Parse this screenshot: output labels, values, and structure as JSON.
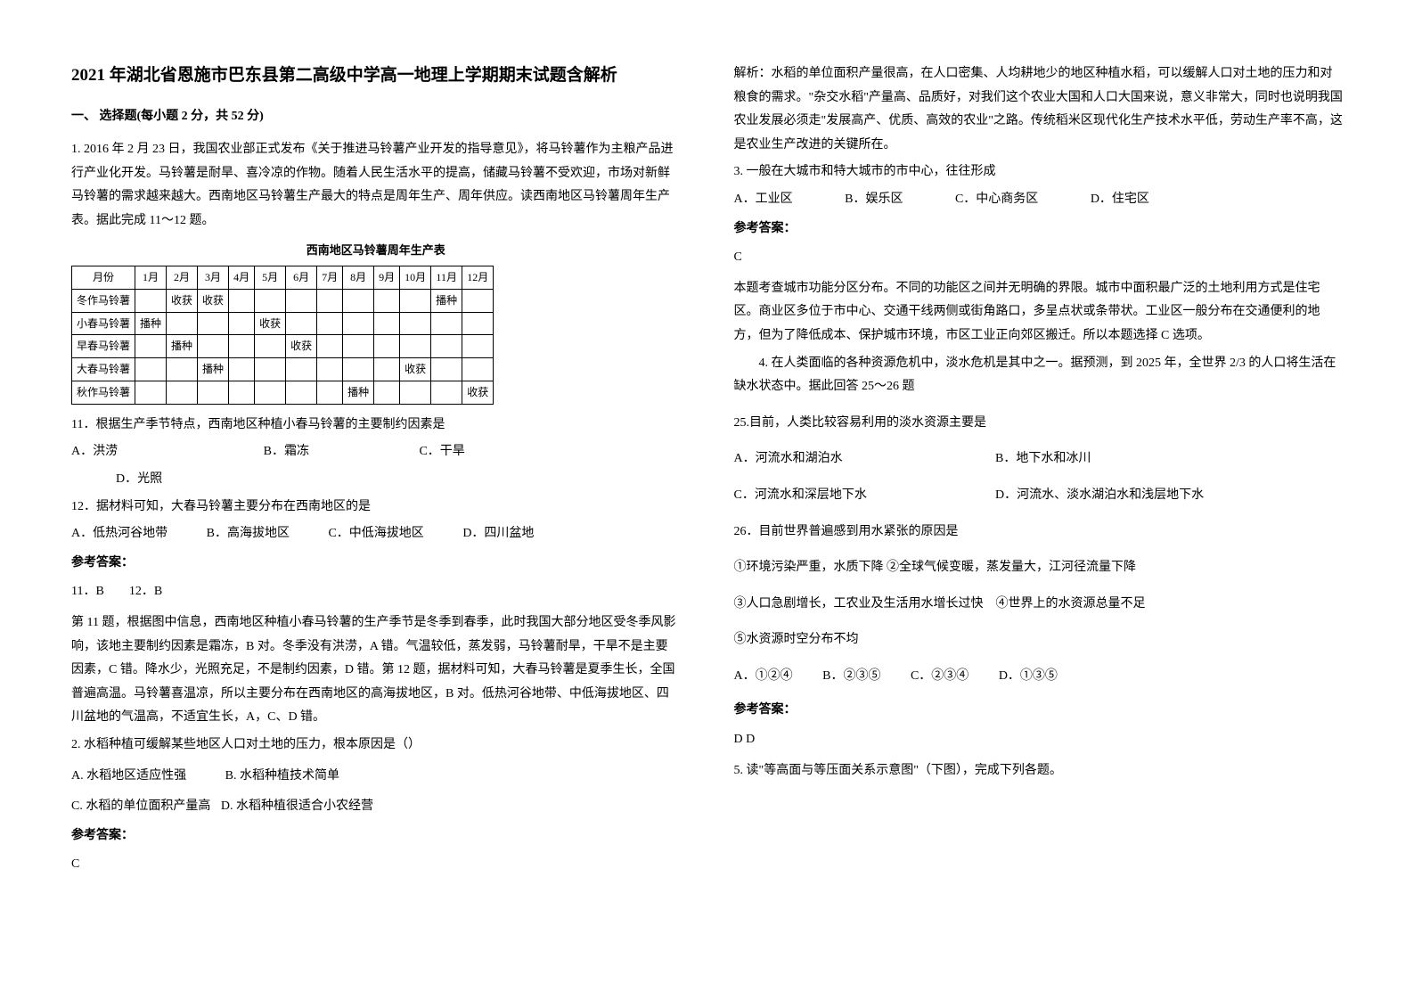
{
  "title": "2021 年湖北省恩施市巴东县第二高级中学高一地理上学期期末试题含解析",
  "section1_heading": "一、 选择题(每小题 2 分，共 52 分)",
  "left": {
    "q1_intro": "1. 2016 年 2 月 23 日，我国农业部正式发布《关于推进马铃薯产业开发的指导意见》，将马铃薯作为主粮产品进行产业化开发。马铃薯是耐旱、喜冷凉的作物。随着人民生活水平的提高，储藏马铃薯不受欢迎，市场对新鲜马铃薯的需求越来越大。西南地区马铃薯生产最大的特点是周年生产、周年供应。读西南地区马铃薯周年生产表。据此完成 11～12 题。",
    "table_caption": "西南地区马铃薯周年生产表",
    "table": {
      "header": [
        "月份",
        "1月",
        "2月",
        "3月",
        "4月",
        "5月",
        "6月",
        "7月",
        "8月",
        "9月",
        "10月",
        "11月",
        "12月"
      ],
      "rows": [
        {
          "name": "冬作马铃薯",
          "cells": [
            "",
            "收获",
            "收获",
            "",
            "",
            "",
            "",
            "",
            "",
            "",
            "播种",
            ""
          ]
        },
        {
          "name": "小春马铃薯",
          "cells": [
            "播种",
            "",
            "",
            "",
            "收获",
            "",
            "",
            "",
            "",
            "",
            "",
            ""
          ]
        },
        {
          "name": "早春马铃薯",
          "cells": [
            "",
            "播种",
            "",
            "",
            "",
            "收获",
            "",
            "",
            "",
            "",
            "",
            ""
          ]
        },
        {
          "name": "大春马铃薯",
          "cells": [
            "",
            "",
            "播种",
            "",
            "",
            "",
            "",
            "",
            "",
            "收获",
            "",
            ""
          ]
        },
        {
          "name": "秋作马铃薯",
          "cells": [
            "",
            "",
            "",
            "",
            "",
            "",
            "",
            "播种",
            "",
            "",
            "",
            "收获"
          ]
        }
      ]
    },
    "q11": "11．根据生产季节特点，西南地区种植小春马铃薯的主要制约因素是",
    "q11_opts": {
      "a": "A．洪涝",
      "b": "B．霜冻",
      "c": "C．干旱",
      "d": "D．光照"
    },
    "q12": "12．据材料可知，大春马铃薯主要分布在西南地区的是",
    "q12_opts": {
      "a": "A．低热河谷地带",
      "b": "B．高海拔地区",
      "c": "C．中低海拔地区",
      "d": "D．四川盆地"
    },
    "ans_label": "参考答案：",
    "ans1": "11．B　　12．B",
    "explain1": "第 11 题，根据图中信息，西南地区种植小春马铃薯的生产季节是冬季到春季，此时我国大部分地区受冬季风影响，该地主要制约因素是霜冻，B 对。冬季没有洪涝，A 错。气温较低，蒸发弱，马铃薯耐旱，干旱不是主要因素，C 错。降水少，光照充足，不是制约因素，D 错。第 12 题，据材料可知，大春马铃薯是夏季生长，全国普遍高温。马铃薯喜温凉，所以主要分布在西南地区的高海拔地区，B 对。低热河谷地带、中低海拔地区、四川盆地的气温高，不适宜生长，A，C、D 错。",
    "q2": "2. 水稻种植可缓解某些地区人口对土地的压力，根本原因是（）",
    "q2_opts": {
      "a": "A. 水稻地区适应性强",
      "b": "B. 水稻种植技术简单",
      "c": "C. 水稻的单位面积产量高",
      "d": "D. 水稻种植很适合小农经营"
    },
    "ans2": "C"
  },
  "right": {
    "explain2": "解析：水稻的单位面积产量很高，在人口密集、人均耕地少的地区种植水稻，可以缓解人口对土地的压力和对粮食的需求。\"杂交水稻\"产量高、品质好，对我们这个农业大国和人口大国来说，意义非常大，同时也说明我国农业发展必须走\"发展高产、优质、高效的农业\"之路。传统稻米区现代化生产技术水平低，劳动生产率不高，这是农业生产改进的关键所在。",
    "q3": "3. 一般在大城市和特大城市的市中心，往往形成",
    "q3_opts": {
      "a": "A．工业区",
      "b": "B．娱乐区",
      "c": "C．中心商务区",
      "d": "D．住宅区"
    },
    "ans3": "C",
    "explain3": "本题考查城市功能分区分布。不同的功能区之间并无明确的界限。城市中面积最广泛的土地利用方式是住宅区。商业区多位于市中心、交通干线两侧或街角路口，多呈点状或条带状。工业区一般分布在交通便利的地方，但为了降低成本、保护城市环境，市区工业正向郊区搬迁。所以本题选择 C 选项。",
    "q4_intro": "4. 在人类面临的各种资源危机中，淡水危机是其中之一。据预测，到 2025 年，全世界 2/3 的人口将生活在缺水状态中。据此回答 25～26 题",
    "q25": "25.目前，人类比较容易利用的淡水资源主要是",
    "q25_opts": {
      "a": "A．河流水和湖泊水",
      "b": "B．地下水和冰川",
      "c": "C．河流水和深层地下水",
      "d": "D．河流水、淡水湖泊水和浅层地下水"
    },
    "q26": "26．目前世界普遍感到用水紧张的原因是",
    "q26_items": {
      "i1": "①环境污染严重，水质下降  ②全球气候变暖，蒸发量大，江河径流量下降",
      "i2": "③人口急剧增长，工农业及生活用水增长过快　④世界上的水资源总量不足",
      "i3": "⑤水资源时空分布不均"
    },
    "q26_opts": {
      "a": "A．①②④",
      "b": "B．②③⑤",
      "c": "C．②③④",
      "d": "D．①③⑤"
    },
    "ans4": "D  D",
    "q5": "5. 读\"等高面与等压面关系示意图\"（下图），完成下列各题。"
  },
  "colors": {
    "body_bg": "#ffffff",
    "text": "#000000",
    "border": "#000000"
  }
}
